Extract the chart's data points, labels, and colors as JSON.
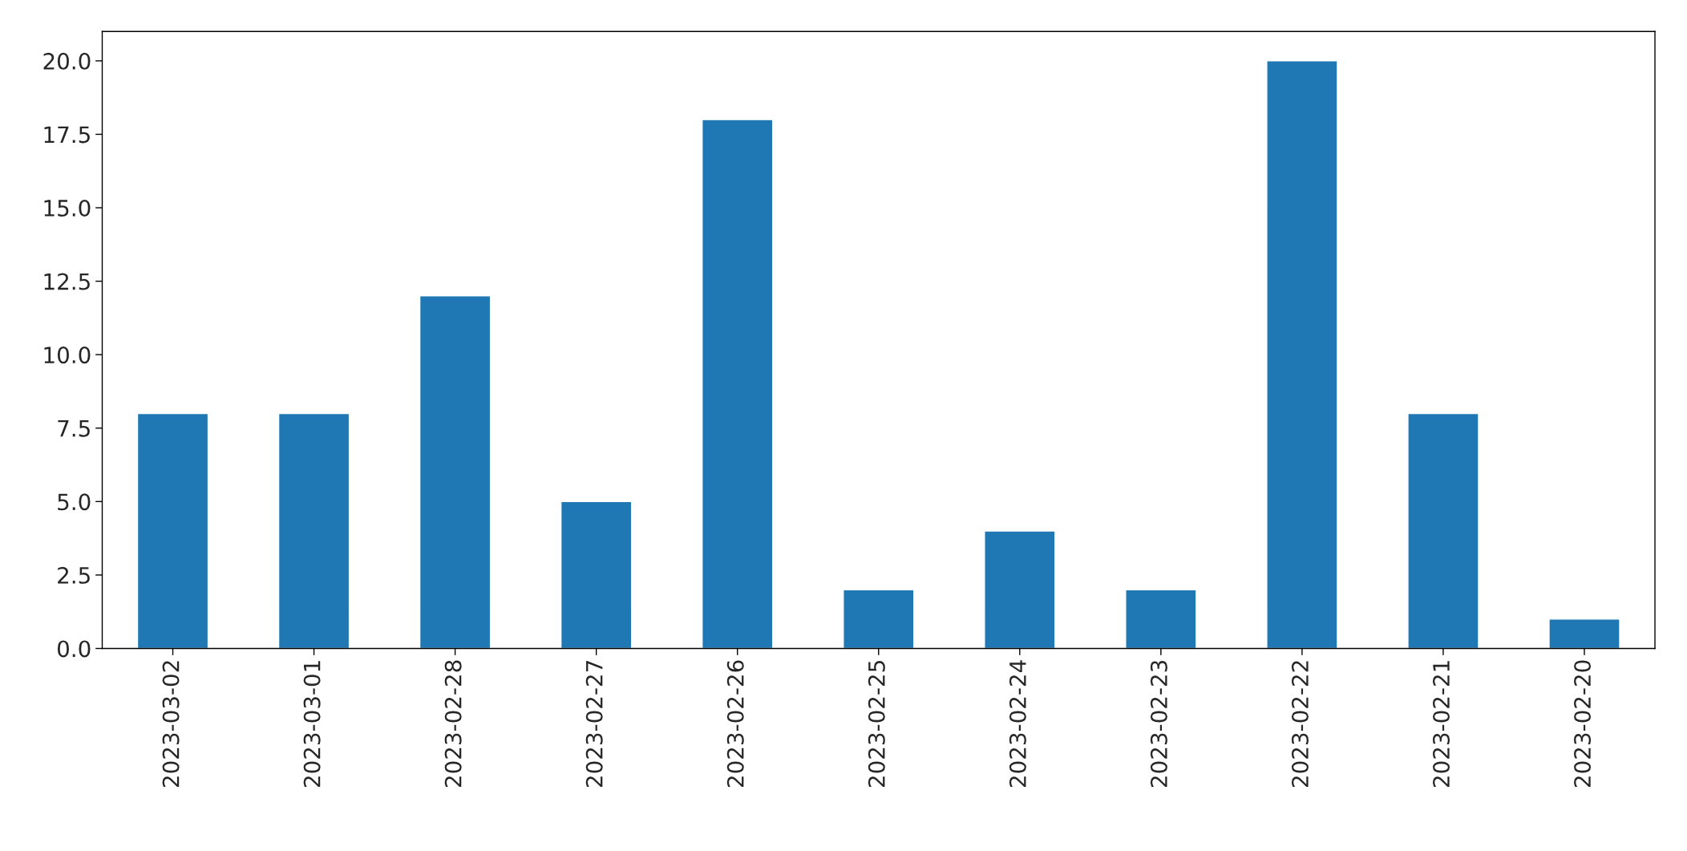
{
  "chart_data": {
    "type": "bar",
    "categories": [
      "2023-03-02",
      "2023-03-01",
      "2023-02-28",
      "2023-02-27",
      "2023-02-26",
      "2023-02-25",
      "2023-02-24",
      "2023-02-23",
      "2023-02-22",
      "2023-02-21",
      "2023-02-20"
    ],
    "values": [
      8,
      8,
      12,
      5,
      18,
      2,
      4,
      2,
      20,
      8,
      1
    ],
    "color": "#1f77b4",
    "ylim": [
      0,
      21
    ],
    "yticks": [
      {
        "value": 0,
        "label": "0.0"
      },
      {
        "value": 2.5,
        "label": "2.5"
      },
      {
        "value": 5,
        "label": "5.0"
      },
      {
        "value": 7.5,
        "label": "7.5"
      },
      {
        "value": 10,
        "label": "10.0"
      },
      {
        "value": 12.5,
        "label": "12.5"
      },
      {
        "value": 15,
        "label": "15.0"
      },
      {
        "value": 17.5,
        "label": "17.5"
      },
      {
        "value": 20,
        "label": "20.0"
      }
    ],
    "grid": false,
    "legend": false
  }
}
